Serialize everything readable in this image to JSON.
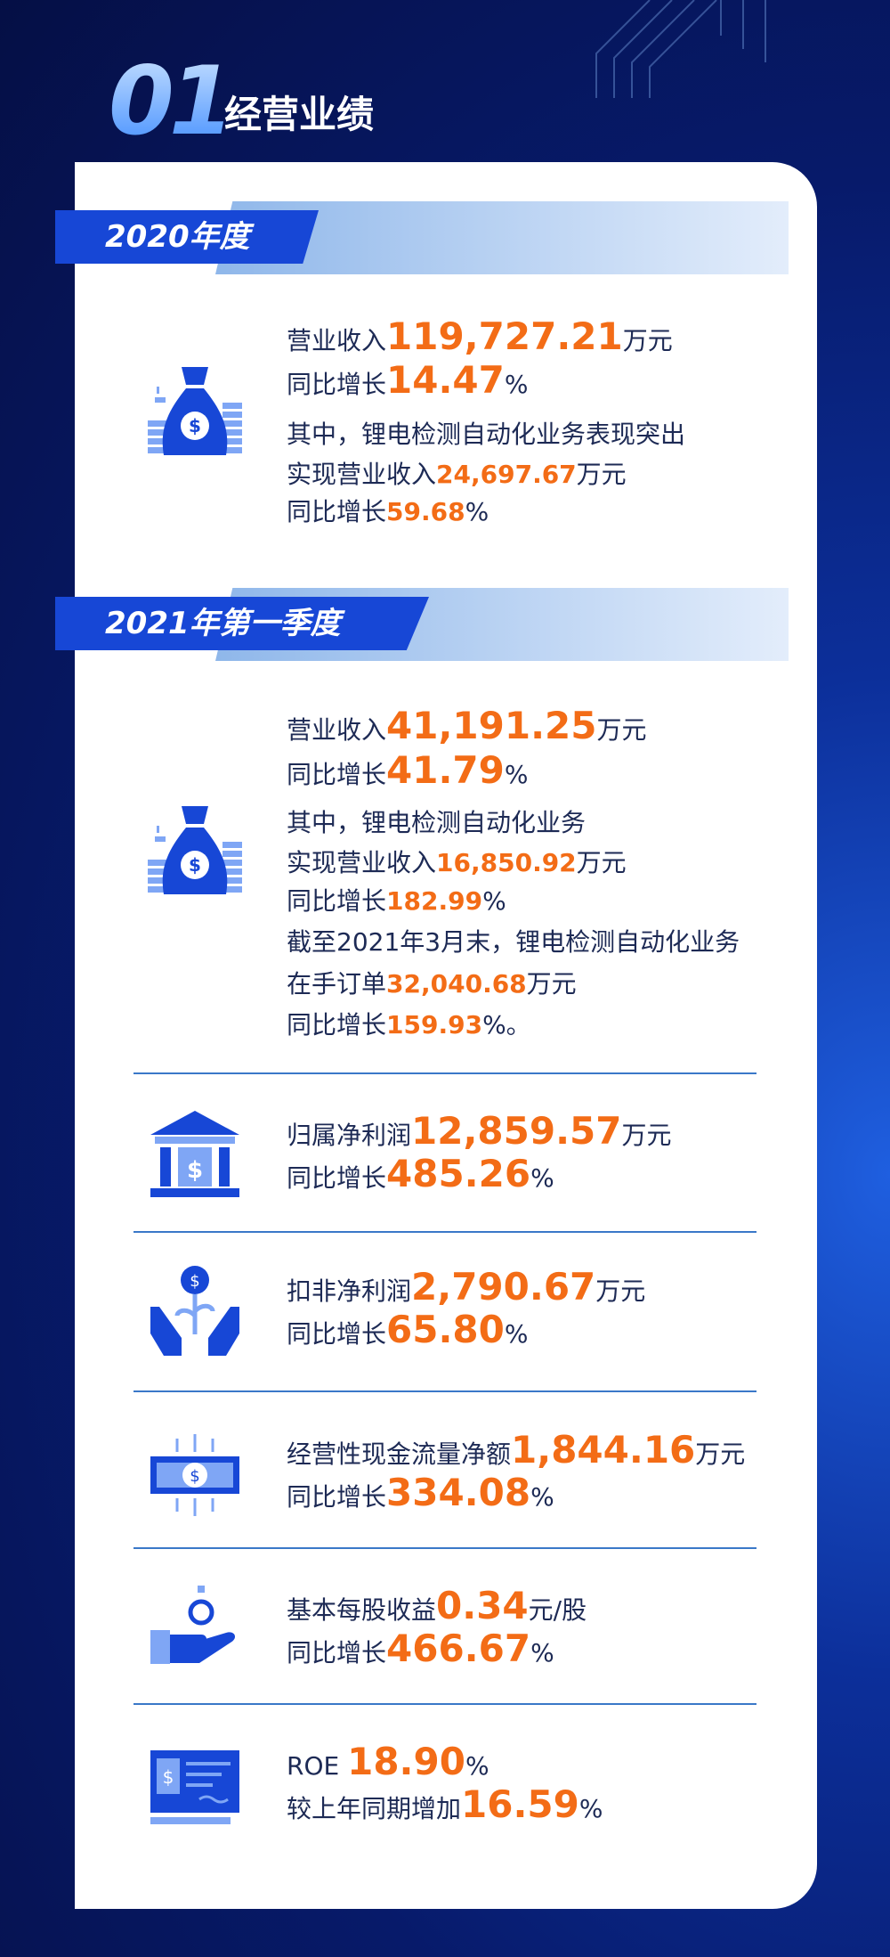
{
  "header": {
    "number": "01",
    "title": "经营业绩"
  },
  "colors": {
    "accent": "#f36c16",
    "primary": "#1747d6",
    "text": "#1d2a55"
  },
  "y2020": {
    "tag": "2020年度",
    "l1": {
      "pre": "营业收入",
      "val": "119,727.21",
      "unit": "万元"
    },
    "l2": {
      "pre": "同比增长",
      "val": "14.47",
      "unit": "%"
    },
    "l3": "其中，锂电检测自动化业务表现突出",
    "l4": {
      "pre": "实现营业收入",
      "val": "24,697.67",
      "unit": "万元"
    },
    "l5": {
      "pre": "同比增长",
      "val": "59.68",
      "unit": "%"
    },
    "icon": "money-bag-icon"
  },
  "q2021": {
    "tag": "2021年第一季度",
    "l1": {
      "pre": "营业收入",
      "val": "41,191.25",
      "unit": "万元"
    },
    "l2": {
      "pre": "同比增长",
      "val": "41.79",
      "unit": "%"
    },
    "l3": "其中，锂电检测自动化业务",
    "l4": {
      "pre": "实现营业收入",
      "val": "16,850.92",
      "unit": "万元"
    },
    "l5": {
      "pre": "同比增长",
      "val": "182.99",
      "unit": "%"
    },
    "l6": "截至2021年3月末，锂电检测自动化业务",
    "l7": {
      "pre": "在手订单",
      "val": "32,040.68",
      "unit": "万元"
    },
    "l8": {
      "pre": "同比增长",
      "val": "159.93",
      "unit": "%。"
    }
  },
  "metrics": [
    {
      "icon": "bank-icon",
      "a": {
        "pre": "归属净利润",
        "val": "12,859.57",
        "unit": "万元"
      },
      "b": {
        "pre": "同比增长",
        "val": "485.26",
        "unit": "%"
      }
    },
    {
      "icon": "hands-plant-coin-icon",
      "a": {
        "pre": "扣非净利润",
        "val": "2,790.67",
        "unit": "万元"
      },
      "b": {
        "pre": "同比增长",
        "val": "65.80",
        "unit": "%"
      }
    },
    {
      "icon": "banknote-icon",
      "a": {
        "pre": "经营性现金流量净额",
        "val": "1,844.16",
        "unit": "万元"
      },
      "b": {
        "pre": "同比增长",
        "val": "334.08",
        "unit": "%"
      }
    },
    {
      "icon": "hand-coin-icon",
      "a": {
        "pre": "基本每股收益",
        "val": "0.34",
        "unit": "元/股"
      },
      "b": {
        "pre": "同比增长",
        "val": "466.67",
        "unit": "%"
      }
    },
    {
      "icon": "check-document-icon",
      "a": {
        "pre": "ROE ",
        "val": "18.90",
        "unit": "%"
      },
      "b": {
        "pre": "较上年同期增加",
        "val": "16.59",
        "unit": "%"
      }
    }
  ]
}
